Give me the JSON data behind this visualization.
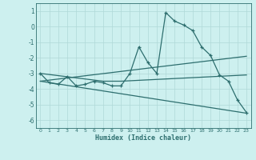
{
  "xlabel": "Humidex (Indice chaleur)",
  "background_color": "#cdf0ef",
  "grid_color": "#b0d8d8",
  "line_color": "#2d6e6e",
  "xlim": [
    -0.5,
    23.5
  ],
  "ylim": [
    -6.5,
    1.5
  ],
  "yticks": [
    -6,
    -5,
    -4,
    -3,
    -2,
    -1,
    0,
    1
  ],
  "x_ticks": [
    0,
    1,
    2,
    3,
    4,
    5,
    6,
    7,
    8,
    9,
    10,
    11,
    12,
    13,
    14,
    15,
    16,
    17,
    18,
    19,
    20,
    21,
    22,
    23
  ],
  "series": [
    {
      "x": [
        0,
        1,
        2,
        3,
        4,
        5,
        6,
        7,
        8,
        9,
        10,
        11,
        12,
        13,
        14,
        15,
        16,
        17,
        18,
        19,
        20,
        21,
        22,
        23
      ],
      "y": [
        -3.0,
        -3.6,
        -3.7,
        -3.2,
        -3.8,
        -3.7,
        -3.5,
        -3.6,
        -3.8,
        -3.8,
        -3.0,
        -1.3,
        -2.3,
        -3.0,
        0.9,
        0.35,
        0.1,
        -0.25,
        -1.3,
        -1.85,
        -3.1,
        -3.5,
        -4.7,
        -5.5
      ],
      "marker": true
    },
    {
      "x": [
        0,
        23
      ],
      "y": [
        -3.5,
        -1.9
      ],
      "marker": false
    },
    {
      "x": [
        0,
        23
      ],
      "y": [
        -3.5,
        -5.55
      ],
      "marker": false
    },
    {
      "x": [
        0,
        7,
        9,
        23
      ],
      "y": [
        -3.0,
        -3.5,
        -3.5,
        -3.1
      ],
      "marker": false
    }
  ]
}
